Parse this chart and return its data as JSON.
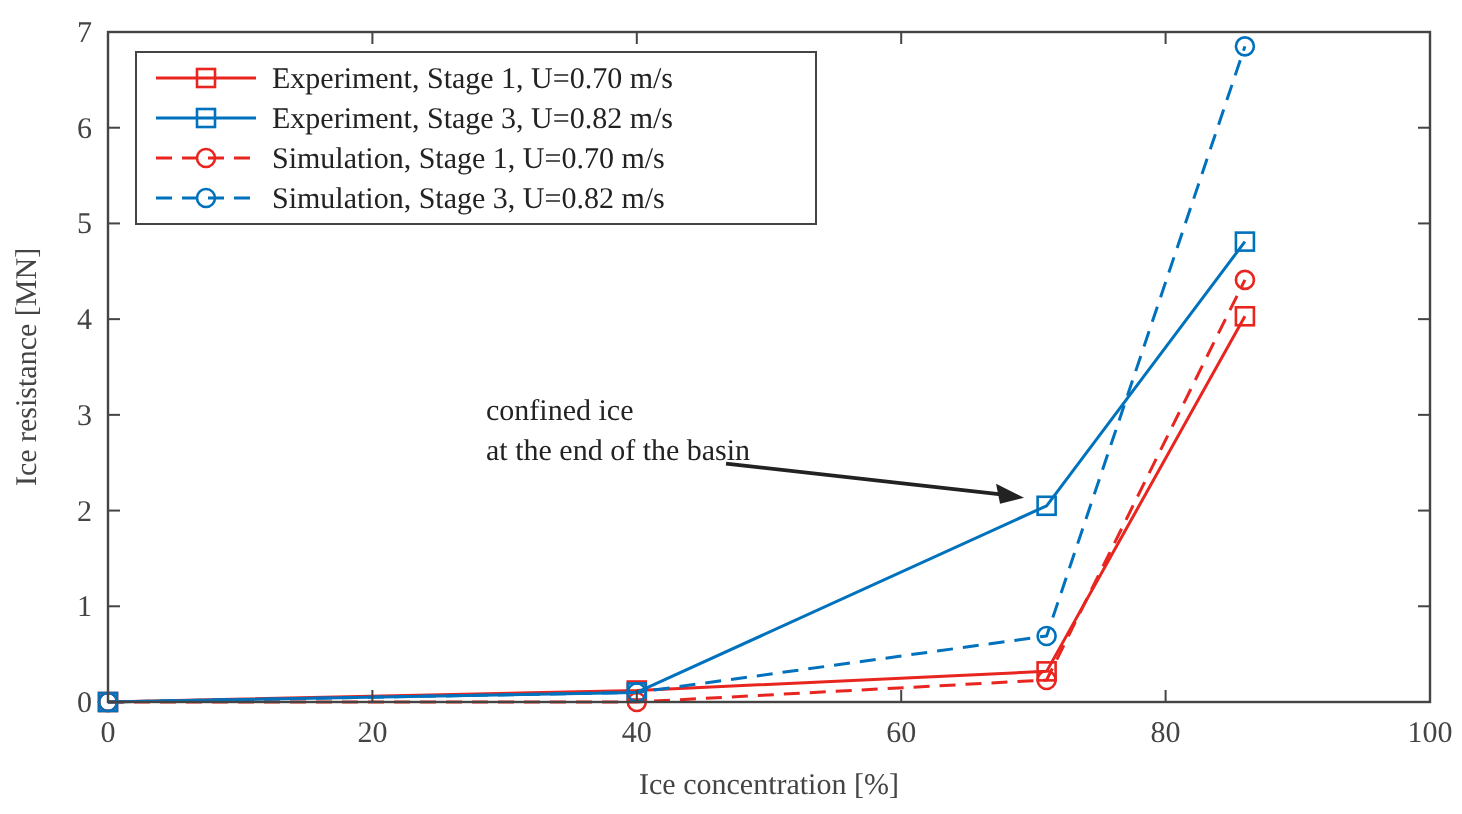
{
  "chart_data": {
    "type": "line",
    "xlabel": "Ice concentration [%]",
    "ylabel": "Ice resistance [MN]",
    "x": [
      0,
      40,
      71,
      86
    ],
    "series": [
      {
        "name": "Experiment, Stage 1, U=0.70 m/s",
        "color": "#e8251f",
        "values": [
          0,
          0.12,
          0.32,
          4.03
        ],
        "marker": "square",
        "line_style": "solid"
      },
      {
        "name": "Experiment, Stage 3, U=0.82 m/s",
        "color": "#0072bd",
        "values": [
          0,
          0.1,
          2.05,
          4.81
        ],
        "marker": "square",
        "line_style": "solid"
      },
      {
        "name": "Simulation, Stage 1, U=0.70 m/s",
        "color": "#e8251f",
        "values": [
          0,
          0.0,
          0.23,
          4.41
        ],
        "marker": "circle",
        "line_style": "dashed"
      },
      {
        "name": "Simulation, Stage 3, U=0.82 m/s",
        "color": "#0072bd",
        "values": [
          0,
          0.1,
          0.69,
          6.85
        ],
        "marker": "circle",
        "line_style": "dashed"
      }
    ],
    "annotations": [
      "confined ice\nat the end of the basin"
    ],
    "xlim": [
      0,
      100
    ],
    "xticks": [
      0,
      20,
      40,
      60,
      80,
      100
    ],
    "ylim": [
      0,
      7
    ],
    "yticks": [
      0,
      1,
      2,
      3,
      4,
      5,
      6,
      7
    ],
    "grid": false,
    "legend": "top left"
  }
}
